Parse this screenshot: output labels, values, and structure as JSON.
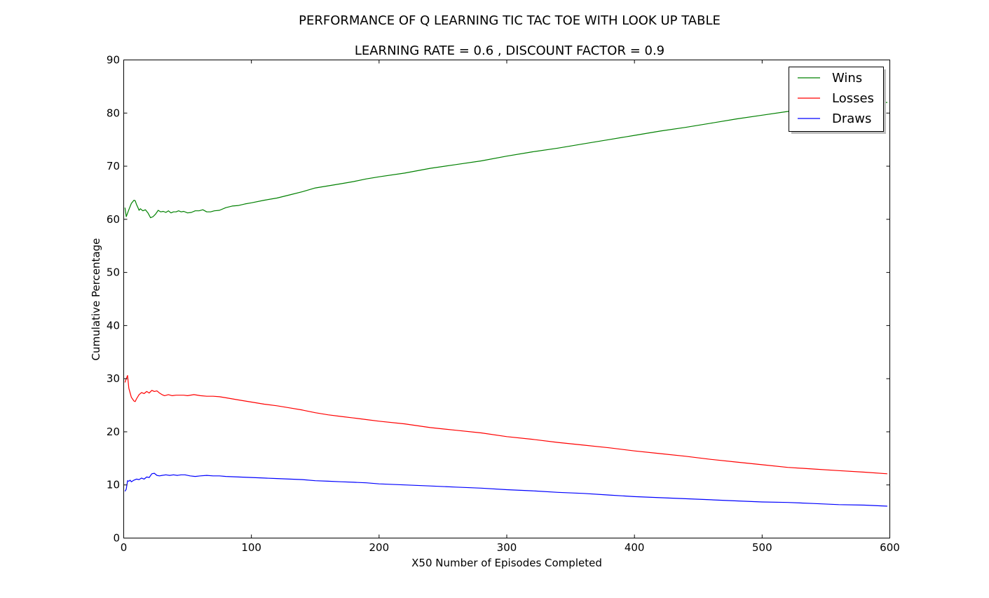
{
  "chart_data": {
    "type": "line",
    "title": "PERFORMANCE OF Q LEARNING TIC TAC TOE WITH LOOK UP TABLE",
    "subtitle": "LEARNING RATE =  0.6 , DISCOUNT FACTOR =  0.9",
    "xlabel": "X50 Number of Episodes Completed",
    "ylabel": "Cumulative Percentage",
    "xlim": [
      0,
      600
    ],
    "ylim": [
      0,
      90
    ],
    "xticks": [
      0,
      100,
      200,
      300,
      400,
      500,
      600
    ],
    "yticks": [
      0,
      10,
      20,
      30,
      40,
      50,
      60,
      70,
      80,
      90
    ],
    "grid": false,
    "legend_position": "top-right",
    "series": [
      {
        "name": "Wins",
        "color": "#008000",
        "x": [
          1,
          2,
          4,
          6,
          8,
          9,
          10,
          11,
          12,
          13,
          15,
          17,
          19,
          21,
          23,
          25,
          27,
          29,
          31,
          33,
          35,
          37,
          39,
          41,
          43,
          45,
          47,
          50,
          53,
          56,
          59,
          62,
          65,
          68,
          71,
          75,
          80,
          85,
          90,
          95,
          100,
          110,
          120,
          130,
          140,
          150,
          160,
          170,
          180,
          190,
          200,
          220,
          240,
          260,
          280,
          300,
          320,
          340,
          360,
          380,
          400,
          420,
          440,
          460,
          480,
          500,
          520,
          540,
          560,
          580,
          598
        ],
        "values": [
          62.2,
          60.5,
          61.8,
          63.0,
          63.6,
          63.5,
          62.8,
          62.3,
          61.7,
          62.0,
          61.6,
          61.8,
          61.2,
          60.3,
          60.5,
          61.0,
          61.7,
          61.4,
          61.5,
          61.3,
          61.6,
          61.2,
          61.4,
          61.4,
          61.6,
          61.4,
          61.5,
          61.2,
          61.3,
          61.6,
          61.6,
          61.8,
          61.4,
          61.4,
          61.6,
          61.7,
          62.2,
          62.5,
          62.6,
          62.9,
          63.1,
          63.6,
          64.0,
          64.6,
          65.2,
          65.9,
          66.3,
          66.7,
          67.1,
          67.6,
          68.0,
          68.7,
          69.6,
          70.3,
          71.0,
          71.9,
          72.7,
          73.4,
          74.2,
          75.0,
          75.8,
          76.6,
          77.3,
          78.1,
          78.9,
          79.6,
          80.3,
          80.9,
          81.4,
          81.8,
          82.0
        ]
      },
      {
        "name": "Losses",
        "color": "#ff0000",
        "x": [
          1,
          2,
          3,
          4,
          6,
          8,
          9,
          10,
          12,
          14,
          16,
          18,
          20,
          22,
          24,
          26,
          28,
          30,
          32,
          35,
          38,
          41,
          44,
          47,
          50,
          55,
          60,
          65,
          70,
          75,
          80,
          90,
          100,
          110,
          120,
          130,
          140,
          150,
          160,
          170,
          180,
          190,
          200,
          220,
          240,
          260,
          280,
          300,
          320,
          340,
          360,
          380,
          400,
          420,
          440,
          460,
          480,
          500,
          520,
          540,
          560,
          580,
          598
        ],
        "values": [
          29.3,
          30.0,
          30.6,
          28.2,
          26.5,
          25.8,
          25.7,
          26.2,
          27.0,
          27.4,
          27.2,
          27.6,
          27.3,
          27.8,
          27.6,
          27.7,
          27.3,
          27.0,
          26.8,
          27.0,
          26.8,
          26.9,
          26.9,
          26.9,
          26.8,
          27.0,
          26.8,
          26.7,
          26.7,
          26.6,
          26.4,
          26.0,
          25.6,
          25.2,
          24.9,
          24.5,
          24.1,
          23.6,
          23.2,
          22.9,
          22.6,
          22.3,
          22.0,
          21.5,
          20.8,
          20.3,
          19.8,
          19.1,
          18.6,
          18.0,
          17.5,
          17.0,
          16.4,
          15.9,
          15.4,
          14.8,
          14.3,
          13.8,
          13.3,
          13.0,
          12.7,
          12.4,
          12.1
        ]
      },
      {
        "name": "Draws",
        "color": "#0000ff",
        "x": [
          1,
          2,
          3,
          4,
          5,
          6,
          8,
          10,
          12,
          14,
          16,
          18,
          20,
          22,
          24,
          26,
          28,
          30,
          33,
          36,
          39,
          42,
          45,
          48,
          52,
          56,
          60,
          65,
          70,
          75,
          80,
          90,
          100,
          110,
          120,
          130,
          140,
          150,
          160,
          170,
          180,
          190,
          200,
          220,
          240,
          260,
          280,
          300,
          320,
          340,
          360,
          380,
          400,
          420,
          440,
          460,
          480,
          500,
          520,
          540,
          560,
          580,
          598
        ],
        "values": [
          8.8,
          9.2,
          10.8,
          10.7,
          10.9,
          10.6,
          10.9,
          11.1,
          11.0,
          11.3,
          11.1,
          11.5,
          11.4,
          12.1,
          12.2,
          11.8,
          11.7,
          11.8,
          11.9,
          11.8,
          11.9,
          11.8,
          11.9,
          11.9,
          11.7,
          11.6,
          11.7,
          11.8,
          11.7,
          11.7,
          11.6,
          11.5,
          11.4,
          11.3,
          11.2,
          11.1,
          11.0,
          10.8,
          10.7,
          10.6,
          10.5,
          10.4,
          10.2,
          10.0,
          9.8,
          9.6,
          9.4,
          9.1,
          8.9,
          8.6,
          8.4,
          8.1,
          7.8,
          7.6,
          7.4,
          7.2,
          7.0,
          6.8,
          6.7,
          6.5,
          6.3,
          6.2,
          6.0
        ]
      }
    ]
  }
}
